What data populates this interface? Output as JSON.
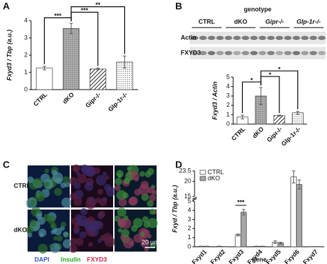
{
  "panels": [
    "A",
    "B",
    "C",
    "D"
  ],
  "chart_data": [
    {
      "type": "bar",
      "ylabel": "Fxyd3 / Tbp (a.u.)",
      "categories": [
        "CTRL",
        "dKO",
        "Gipr-/-",
        "Glp-1r-/-"
      ],
      "series": [
        {
          "color": "#ffffff",
          "patterns": [
            "solid",
            "dense-dots",
            "hatch",
            "sparse-dots"
          ],
          "values": [
            1.25,
            3.55,
            1.2,
            1.6
          ],
          "errors": [
            0.1,
            0.3,
            0.05,
            0.35
          ]
        }
      ],
      "ylim": [
        0,
        4
      ],
      "yticks": [
        0,
        1,
        2,
        3,
        4
      ],
      "significance": [
        {
          "from": 0,
          "to": 1,
          "label": "***"
        },
        {
          "from": 1,
          "to": 2,
          "label": "***"
        },
        {
          "from": 1,
          "to": 3,
          "label": "**"
        }
      ]
    },
    {
      "type": "bar",
      "ylabel": "Fxyd3 / Actin",
      "categories": [
        "CTRL",
        "dKO",
        "Gipr-/-",
        "Glp-1r-/-"
      ],
      "series": [
        {
          "color": "#ffffff",
          "patterns": [
            "solid",
            "dense-dots",
            "hatch",
            "sparse-dots"
          ],
          "values": [
            0.75,
            3.0,
            0.9,
            1.2
          ],
          "errors": [
            0.2,
            0.9,
            0.05,
            0.15
          ]
        }
      ],
      "ylim": [
        0,
        5
      ],
      "yticks": [
        0,
        1,
        2,
        3,
        4,
        5
      ],
      "significance": [
        {
          "from": 0,
          "to": 1,
          "label": "*"
        },
        {
          "from": 1,
          "to": 2,
          "label": "*"
        },
        {
          "from": 1,
          "to": 3,
          "label": "*"
        }
      ]
    },
    {
      "type": "bar",
      "ylabel": "Fxyd / Tbp (a.u.)",
      "xlabel": "gene",
      "categories": [
        "Fxyd1",
        "Fxyd2",
        "Fxyd3",
        "Fxyd4",
        "Fxyd5",
        "Fxyd6",
        "Fxyd7"
      ],
      "series": [
        {
          "name": "CTRL",
          "color": "#ffffff",
          "values": [
            0.05,
            0.05,
            1.3,
            0.05,
            0.5,
            21.5,
            0.02
          ],
          "errors": [
            0.02,
            0.02,
            0.1,
            0.02,
            0.15,
            2.0,
            0.01
          ]
        },
        {
          "name": "dKO",
          "color": "#a6a6a6",
          "values": [
            0.05,
            0.02,
            3.8,
            0.05,
            0.4,
            19,
            0.02
          ],
          "errors": [
            0.02,
            0.01,
            0.3,
            0.02,
            0.1,
            1.5,
            0.01
          ]
        }
      ],
      "ylim": [
        0,
        23.5
      ],
      "y_break": [
        5,
        15
      ],
      "yticks": [
        0,
        1,
        2,
        3,
        4,
        5,
        15,
        20,
        23.5
      ],
      "legend": "upper-left",
      "significance": [
        {
          "from": 2,
          "to": 2,
          "label": "***"
        }
      ]
    }
  ],
  "blot": {
    "heading": "genotype",
    "groups": [
      "CTRL",
      "dKO",
      "Gipr-/-",
      "Glp-1r-/-"
    ],
    "rows": [
      "Actin",
      "FXYD3"
    ]
  },
  "micrographs": {
    "rows": [
      "CTRL",
      "dKO"
    ],
    "channels": [
      "DAPI",
      "Insulin",
      "FXYD3"
    ],
    "scale_bar": "20 µm"
  }
}
